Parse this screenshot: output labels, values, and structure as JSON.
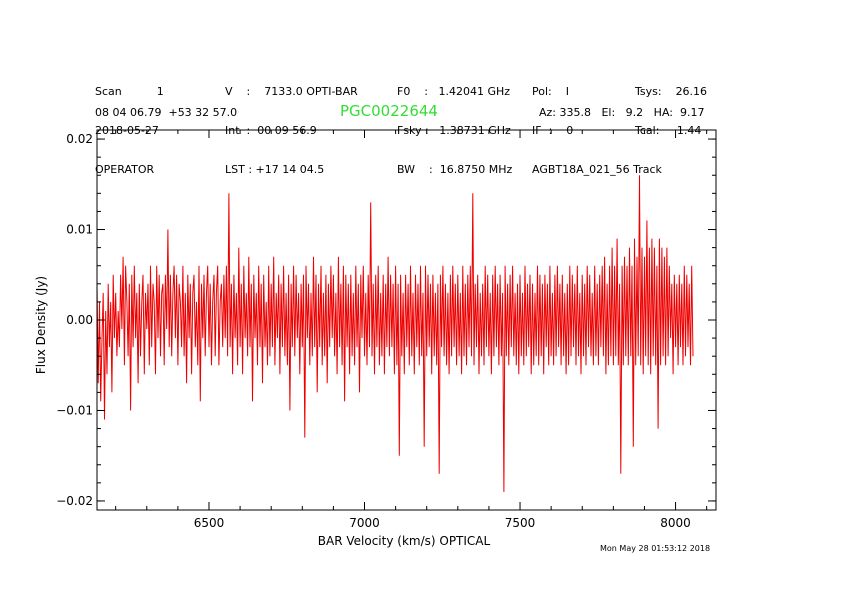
{
  "header": {
    "col1": [
      "Scan          1",
      "2018-05-27",
      "OPERATOR"
    ],
    "col2": [
      "V    :    7133.0 OPTI-BAR",
      "Int  :  00 09 56.9",
      "LST : +17 14 04.5"
    ],
    "col3": [
      "F0    :   1.42041 GHz",
      "Fsky :   1.38731 GHz",
      "BW    :  16.8750 MHz"
    ],
    "col4": [
      "Pol:    I",
      "IF  :    0",
      "AGBT18A_021_56 Track"
    ],
    "col5": [
      "Tsys:    26.16",
      "Tcal:     1.44",
      ""
    ],
    "coords": "08 04 06.79  +53 32 57.0",
    "object": "PGC0022644",
    "pointing": "Az: 335.8   El:   9.2   HA:  9.17"
  },
  "timestamp": "Mon May 28 01:53:12 2018",
  "colors": {
    "spectrum": "#ee0000",
    "object": "#33dd33",
    "axis": "#000000"
  },
  "chart_data": {
    "type": "line",
    "title": "PGC0022644",
    "xlabel": "BAR Velocity (km/s) OPTICAL",
    "ylabel": "Flux Density (Jy)",
    "xlim": [
      6140,
      8130
    ],
    "ylim": [
      -0.021,
      0.021
    ],
    "xticks": [
      6500,
      7000,
      7500,
      8000
    ],
    "yticks": [
      -0.02,
      -0.01,
      0.0,
      0.01,
      0.02
    ],
    "ytick_labels": [
      "−0.02",
      "−0.01",
      "0.00",
      "0.01",
      "0.02"
    ],
    "series": [
      {
        "name": "spectrum",
        "x_start": 6140,
        "x_step": 4,
        "values": [
          0.004,
          -0.007,
          0.002,
          -0.009,
          -0.002,
          0.003,
          -0.011,
          0.001,
          -0.006,
          0.004,
          -0.003,
          0.002,
          -0.008,
          0.005,
          -0.002,
          0.003,
          -0.004,
          0.001,
          -0.003,
          0.005,
          -0.001,
          0.007,
          -0.005,
          0.006,
          0.002,
          -0.004,
          0.004,
          -0.01,
          0.005,
          -0.003,
          0.006,
          -0.002,
          0.003,
          -0.007,
          0.004,
          -0.004,
          0.002,
          0.005,
          -0.006,
          0.003,
          -0.001,
          0.004,
          -0.005,
          0.006,
          -0.003,
          0.004,
          0.002,
          -0.006,
          0.006,
          -0.002,
          0.005,
          -0.004,
          0.003,
          0.004,
          -0.005,
          0.005,
          -0.001,
          0.01,
          -0.003,
          0.005,
          -0.004,
          0.003,
          0.006,
          -0.002,
          0.005,
          -0.005,
          0.004,
          0.002,
          -0.003,
          0.006,
          -0.004,
          0.003,
          -0.007,
          0.005,
          -0.002,
          0.004,
          -0.006,
          0.003,
          0.005,
          -0.003,
          0.002,
          -0.005,
          0.006,
          -0.009,
          0.004,
          -0.002,
          0.005,
          -0.004,
          0.003,
          0.006,
          -0.003,
          0.004,
          -0.005,
          0.002,
          0.005,
          -0.004,
          0.003,
          0.006,
          -0.005,
          0.002,
          0.004,
          -0.003,
          0.005,
          -0.002,
          0.006,
          -0.004,
          0.014,
          -0.003,
          0.004,
          -0.006,
          0.005,
          -0.002,
          0.003,
          -0.005,
          0.008,
          -0.003,
          0.004,
          -0.006,
          0.006,
          -0.002,
          0.003,
          -0.004,
          0.007,
          -0.003,
          0.004,
          -0.009,
          0.005,
          -0.002,
          0.003,
          -0.005,
          0.006,
          -0.003,
          0.004,
          -0.007,
          0.005,
          -0.003,
          0.002,
          -0.005,
          0.006,
          -0.004,
          0.004,
          -0.003,
          0.007,
          -0.005,
          0.003,
          -0.002,
          0.005,
          -0.006,
          0.004,
          -0.003,
          0.006,
          -0.004,
          0.003,
          -0.005,
          0.005,
          -0.01,
          0.004,
          -0.003,
          0.006,
          -0.004,
          0.005,
          -0.002,
          0.003,
          -0.006,
          0.004,
          -0.003,
          0.005,
          -0.013,
          0.006,
          -0.002,
          0.004,
          -0.005,
          0.003,
          -0.004,
          0.007,
          -0.003,
          0.005,
          -0.008,
          0.004,
          -0.003,
          0.006,
          -0.005,
          0.003,
          -0.004,
          0.005,
          -0.007,
          0.004,
          -0.003,
          0.006,
          -0.002,
          0.005,
          -0.004,
          0.003,
          -0.006,
          0.007,
          -0.003,
          0.004,
          -0.005,
          0.006,
          -0.009,
          0.005,
          -0.003,
          0.004,
          -0.006,
          0.005,
          -0.004,
          0.003,
          -0.005,
          0.006,
          -0.003,
          0.004,
          -0.008,
          0.005,
          -0.002,
          0.006,
          -0.004,
          0.003,
          -0.005,
          0.005,
          -0.003,
          0.013,
          -0.004,
          0.004,
          -0.006,
          0.005,
          -0.003,
          0.006,
          -0.005,
          0.003,
          -0.004,
          0.005,
          -0.006,
          0.004,
          -0.003,
          0.007,
          -0.004,
          0.005,
          -0.003,
          0.004,
          -0.006,
          0.006,
          -0.005,
          0.004,
          -0.015,
          0.005,
          -0.004,
          0.003,
          -0.006,
          0.005,
          -0.003,
          0.004,
          -0.005,
          0.006,
          -0.004,
          0.003,
          -0.006,
          0.005,
          -0.003,
          0.004,
          -0.005,
          0.006,
          -0.004,
          0.003,
          -0.014,
          0.006,
          -0.004,
          0.005,
          -0.003,
          0.004,
          -0.006,
          0.005,
          -0.004,
          0.003,
          -0.005,
          0.004,
          -0.017,
          0.005,
          -0.003,
          0.006,
          -0.004,
          0.004,
          -0.005,
          0.003,
          -0.006,
          0.005,
          -0.004,
          0.006,
          -0.003,
          0.004,
          -0.005,
          0.005,
          -0.004,
          0.003,
          -0.006,
          0.006,
          -0.004,
          0.004,
          -0.005,
          0.005,
          -0.003,
          0.006,
          -0.004,
          0.014,
          -0.005,
          0.004,
          -0.003,
          0.005,
          -0.006,
          0.003,
          -0.004,
          0.004,
          -0.005,
          0.006,
          -0.003,
          0.005,
          -0.004,
          0.003,
          -0.006,
          0.005,
          -0.004,
          0.006,
          -0.003,
          0.004,
          -0.005,
          0.005,
          -0.004,
          0.003,
          -0.019,
          0.006,
          -0.004,
          0.004,
          -0.005,
          0.005,
          -0.003,
          0.006,
          -0.004,
          0.003,
          -0.005,
          0.004,
          -0.006,
          0.005,
          -0.004,
          0.003,
          -0.005,
          0.006,
          -0.004,
          0.004,
          -0.003,
          0.005,
          -0.006,
          0.004,
          -0.005,
          0.003,
          -0.004,
          0.006,
          -0.005,
          0.005,
          -0.004,
          0.004,
          -0.006,
          0.005,
          -0.003,
          0.004,
          -0.005,
          0.006,
          -0.004,
          0.003,
          -0.005,
          0.005,
          -0.004,
          0.006,
          -0.003,
          0.004,
          -0.005,
          0.005,
          -0.004,
          0.003,
          -0.006,
          0.004,
          -0.005,
          0.006,
          -0.004,
          0.005,
          -0.003,
          0.004,
          -0.005,
          0.006,
          -0.004,
          0.003,
          -0.006,
          0.005,
          -0.004,
          0.004,
          -0.005,
          0.006,
          -0.003,
          0.005,
          -0.004,
          0.003,
          -0.005,
          0.006,
          -0.004,
          0.004,
          -0.005,
          0.005,
          -0.003,
          0.006,
          -0.004,
          0.007,
          -0.006,
          0.004,
          -0.005,
          0.006,
          -0.004,
          0.008,
          -0.005,
          0.006,
          -0.004,
          0.009,
          -0.005,
          0.004,
          -0.017,
          0.006,
          -0.005,
          0.007,
          -0.004,
          0.006,
          -0.005,
          0.008,
          -0.004,
          0.006,
          -0.014,
          0.009,
          -0.005,
          0.007,
          -0.004,
          0.016,
          -0.005,
          0.008,
          -0.006,
          0.007,
          -0.004,
          0.011,
          -0.005,
          0.008,
          -0.006,
          0.009,
          -0.004,
          0.008,
          -0.005,
          0.006,
          -0.012,
          0.009,
          -0.005,
          0.008,
          -0.004,
          0.007,
          -0.005,
          0.008,
          -0.004,
          0.006,
          -0.002,
          0.004,
          -0.006,
          0.005,
          -0.003,
          0.004,
          -0.005,
          0.005,
          -0.003,
          0.004,
          -0.005,
          0.006,
          -0.004,
          0.005,
          -0.003,
          0.004,
          -0.005,
          0.006,
          -0.004
        ]
      }
    ]
  }
}
